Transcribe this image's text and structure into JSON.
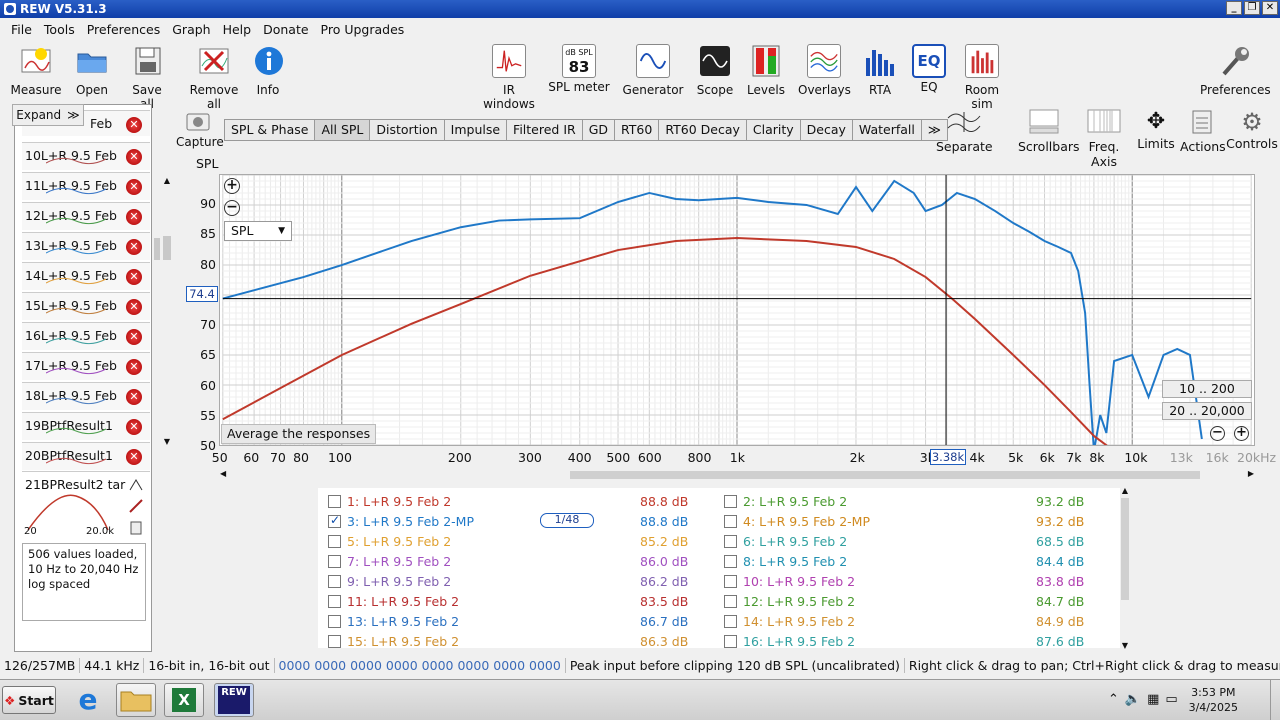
{
  "window": {
    "title": "REW V5.31.3"
  },
  "menu": [
    "File",
    "Tools",
    "Preferences",
    "Graph",
    "Help",
    "Donate",
    "Pro Upgrades"
  ],
  "toolbar": {
    "left": [
      "Measure",
      "Open",
      "Save all",
      "Remove all",
      "Info"
    ],
    "center": [
      "IR windows",
      "SPL meter",
      "Generator",
      "Scope",
      "Levels",
      "Overlays",
      "RTA",
      "EQ",
      "Room sim"
    ],
    "spl_meter_unit": "dB SPL",
    "spl_meter_value": "83",
    "eq_icon_text": "EQ",
    "right": "Preferences"
  },
  "sidebar": {
    "expand_label": "Expand",
    "expand_chevrons": "≫",
    "top_item_text": "Feb",
    "items": [
      {
        "label": "10L+R 9.5 Feb",
        "color": "#b05050"
      },
      {
        "label": "11L+R 9.5 Feb",
        "color": "#3c78c8"
      },
      {
        "label": "12L+R 9.5 Feb",
        "color": "#4a9a4a"
      },
      {
        "label": "13L+R 9.5 Feb",
        "color": "#3c8cd0"
      },
      {
        "label": "14L+R 9.5 Feb",
        "color": "#e0a040"
      },
      {
        "label": "15L+R 9.5 Feb",
        "color": "#c08040"
      },
      {
        "label": "16L+R 9.5 Feb",
        "color": "#40a0a0"
      },
      {
        "label": "17L+R 9.5 Feb",
        "color": "#a050c0"
      },
      {
        "label": "18L+R 9.5 Feb",
        "color": "#5080c0"
      },
      {
        "label": "19BPtfResult1",
        "color": "#50a050"
      },
      {
        "label": "20BPtfResult1",
        "color": "#c05050"
      }
    ],
    "selected": {
      "label": "21BPResult2 tar",
      "x_start": "20",
      "x_end": "20.0k"
    },
    "info_text": "506 values loaded, 10 Hz to 20,040 Hz log spaced"
  },
  "capture_label": "Capture",
  "tabs": [
    "SPL & Phase",
    "All SPL",
    "Distortion",
    "Impulse",
    "Filtered IR",
    "GD",
    "RT60",
    "RT60 Decay",
    "Clarity",
    "Decay",
    "Waterfall",
    "≫"
  ],
  "active_tab": "All SPL",
  "graph_tools": [
    "Separate",
    "Scrollbars",
    "Freq. Axis",
    "Limits",
    "Actions",
    "Controls"
  ],
  "graph": {
    "y_axis_label": "SPL",
    "dropdown_value": "SPL",
    "cursor_y": "74.4",
    "cursor_x": "3.38k",
    "average_button": "Average the responses",
    "range_buttons": [
      "10 .. 200",
      "20 .. 20,000"
    ],
    "zoom_in": "⊕",
    "zoom_out": "⊖",
    "y_ticks": [
      "90",
      "85",
      "80",
      "75",
      "70",
      "65",
      "60",
      "55",
      "50"
    ],
    "x_ticks": [
      "50",
      "60",
      "70",
      "80",
      "100",
      "200",
      "300",
      "400",
      "500",
      "600",
      "800",
      "1k",
      "2k",
      "3k",
      "4k",
      "5k",
      "6k",
      "7k",
      "8k",
      "10k",
      "13k",
      "16k",
      "20kHz"
    ]
  },
  "legend": {
    "smoothing": "1/48",
    "left": [
      {
        "label": "1: L+R 9.5 Feb 2",
        "value": "88.8 dB",
        "color": "#c0392b",
        "checked": false
      },
      {
        "label": "3: L+R 9.5 Feb 2-MP",
        "value": "88.8 dB",
        "color": "#1f78c8",
        "checked": true
      },
      {
        "label": "5: L+R 9.5 Feb 2",
        "value": "85.2 dB",
        "color": "#e0a030",
        "checked": false
      },
      {
        "label": "7: L+R 9.5 Feb 2",
        "value": "86.0 dB",
        "color": "#a050c0",
        "checked": false
      },
      {
        "label": "9: L+R 9.5 Feb 2",
        "value": "86.2 dB",
        "color": "#8060b0",
        "checked": false
      },
      {
        "label": "11: L+R 9.5 Feb 2",
        "value": "83.5 dB",
        "color": "#b83030",
        "checked": false
      },
      {
        "label": "13: L+R 9.5 Feb 2",
        "value": "86.7 dB",
        "color": "#2a70c0",
        "checked": false
      },
      {
        "label": "15: L+R 9.5 Feb 2",
        "value": "86.3 dB",
        "color": "#d09030",
        "checked": false
      }
    ],
    "right": [
      {
        "label": "2: L+R 9.5 Feb 2",
        "value": "93.2 dB",
        "color": "#4a9a30",
        "checked": false
      },
      {
        "label": "4: L+R 9.5 Feb 2-MP",
        "value": "93.2 dB",
        "color": "#d08a20",
        "checked": false
      },
      {
        "label": "6: L+R 9.5 Feb 2",
        "value": "68.5 dB",
        "color": "#30a0a0",
        "checked": false
      },
      {
        "label": "8: L+R 9.5 Feb 2",
        "value": "84.4 dB",
        "color": "#2090b0",
        "checked": false
      },
      {
        "label": "10: L+R 9.5 Feb 2",
        "value": "83.8 dB",
        "color": "#b040b0",
        "checked": false
      },
      {
        "label": "12: L+R 9.5 Feb 2",
        "value": "84.7 dB",
        "color": "#4a9a30",
        "checked": false
      },
      {
        "label": "14: L+R 9.5 Feb 2",
        "value": "84.9 dB",
        "color": "#d09030",
        "checked": false
      },
      {
        "label": "16: L+R 9.5 Feb 2",
        "value": "87.6 dB",
        "color": "#30a0a0",
        "checked": false
      }
    ]
  },
  "status": {
    "memory": "126/257MB",
    "rate": "44.1 kHz",
    "bits": "16-bit in, 16-bit out",
    "levels": "0000 0000  0000 0000  0000 0000  0000 0000",
    "peak": "Peak input before clipping 120 dB SPL (uncalibrated)",
    "hint": "Right click & drag to pan; Ctrl+Right click & drag to measure; mouse wheel to z"
  },
  "taskbar": {
    "start": "Start",
    "time": "3:53 PM",
    "date": "3/4/2025",
    "rew_icon_text": "REW"
  },
  "chart_data": {
    "type": "line",
    "xlabel": "",
    "ylabel": "SPL",
    "x_scale": "log",
    "xlim": [
      50,
      20000
    ],
    "ylim": [
      50,
      95
    ],
    "series": [
      {
        "color": "#1f78c8",
        "x": [
          50,
          80,
          100,
          150,
          200,
          250,
          300,
          400,
          500,
          600,
          700,
          800,
          1000,
          1200,
          1500,
          1800,
          2000,
          2200,
          2500,
          2800,
          3000,
          3300,
          3600,
          4000,
          4500,
          5000,
          5500,
          6000,
          6500,
          7000,
          7300,
          7600,
          7800,
          8000,
          8300,
          8600,
          9000,
          10000,
          11000,
          12000,
          13000,
          14000,
          15000
        ],
        "y": [
          74.4,
          78,
          80,
          84,
          86.3,
          87.4,
          87.6,
          87.8,
          90.5,
          92,
          91,
          90.8,
          91.2,
          90.5,
          90,
          88.5,
          93,
          89,
          94,
          92,
          89,
          90,
          92,
          91,
          89,
          87,
          85.5,
          84,
          83,
          82,
          79,
          72,
          60,
          49,
          55,
          52,
          64,
          65,
          58,
          65,
          66,
          65,
          51
        ]
      },
      {
        "color": "#c0392b",
        "x": [
          50,
          70,
          100,
          150,
          200,
          300,
          500,
          700,
          1000,
          1500,
          2000,
          2500,
          3000,
          3500,
          4000,
          5000,
          6000,
          7000,
          8000,
          9000
        ],
        "y": [
          54.3,
          59.5,
          65,
          70.2,
          73.5,
          78.2,
          82.5,
          84,
          84.5,
          84,
          83,
          81,
          78,
          74.4,
          71,
          65,
          60,
          55.5,
          51.5,
          49
        ]
      }
    ]
  }
}
